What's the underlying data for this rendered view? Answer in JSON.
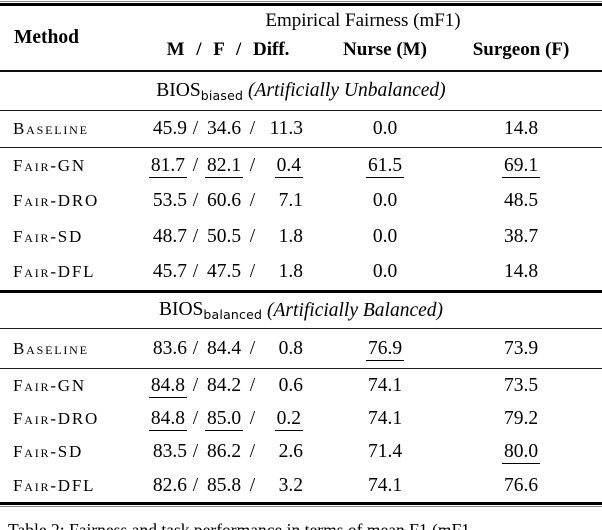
{
  "table": {
    "header": {
      "method_label": "Method",
      "group_label": "Empirical Fairness (mF1)",
      "sub_mfd": "M / F / Diff.",
      "sub_nurse": "Nurse (M)",
      "sub_surgeon": "Surgeon (F)",
      "slash_sep": "/"
    },
    "sections": [
      {
        "title_base": "BIOS",
        "title_subscript": "biased",
        "title_note": "(Artificially Unbalanced)",
        "baseline": {
          "method": "Baseline",
          "m": "45.9",
          "f": "34.6",
          "diff": "11.3",
          "nurse": "0.0",
          "surgeon": "14.8",
          "underlined": []
        },
        "methods": [
          {
            "method": "Fair-GN",
            "m": "81.7",
            "f": "82.1",
            "diff": "0.4",
            "nurse": "61.5",
            "surgeon": "69.1",
            "underlined": [
              "m",
              "f",
              "diff",
              "nurse",
              "surgeon"
            ]
          },
          {
            "method": "Fair-DRO",
            "m": "53.5",
            "f": "60.6",
            "diff": "7.1",
            "nurse": "0.0",
            "surgeon": "48.5",
            "underlined": []
          },
          {
            "method": "Fair-SD",
            "m": "48.7",
            "f": "50.5",
            "diff": "1.8",
            "nurse": "0.0",
            "surgeon": "38.7",
            "underlined": []
          },
          {
            "method": "Fair-DFL",
            "m": "45.7",
            "f": "47.5",
            "diff": "1.8",
            "nurse": "0.0",
            "surgeon": "14.8",
            "underlined": []
          }
        ]
      },
      {
        "title_base": "BIOS",
        "title_subscript": "balanced",
        "title_note": "(Artificially Balanced)",
        "baseline": {
          "method": "Baseline",
          "m": "83.6",
          "f": "84.4",
          "diff": "0.8",
          "nurse": "76.9",
          "surgeon": "73.9",
          "underlined": [
            "nurse"
          ]
        },
        "methods": [
          {
            "method": "Fair-GN",
            "m": "84.8",
            "f": "84.2",
            "diff": "0.6",
            "nurse": "74.1",
            "surgeon": "73.5",
            "underlined": [
              "m"
            ]
          },
          {
            "method": "Fair-DRO",
            "m": "84.8",
            "f": "85.0",
            "diff": "0.2",
            "nurse": "74.1",
            "surgeon": "79.2",
            "underlined": [
              "m",
              "f",
              "diff"
            ]
          },
          {
            "method": "Fair-SD",
            "m": "83.5",
            "f": "86.2",
            "diff": "2.6",
            "nurse": "71.4",
            "surgeon": "80.0",
            "underlined": [
              "surgeon"
            ]
          },
          {
            "method": "Fair-DFL",
            "m": "82.6",
            "f": "85.8",
            "diff": "3.2",
            "nurse": "74.1",
            "surgeon": "76.6",
            "underlined": []
          }
        ]
      }
    ],
    "caption": "Table 2: Fairness and task performance in terms of mean F1 (mF1"
  }
}
